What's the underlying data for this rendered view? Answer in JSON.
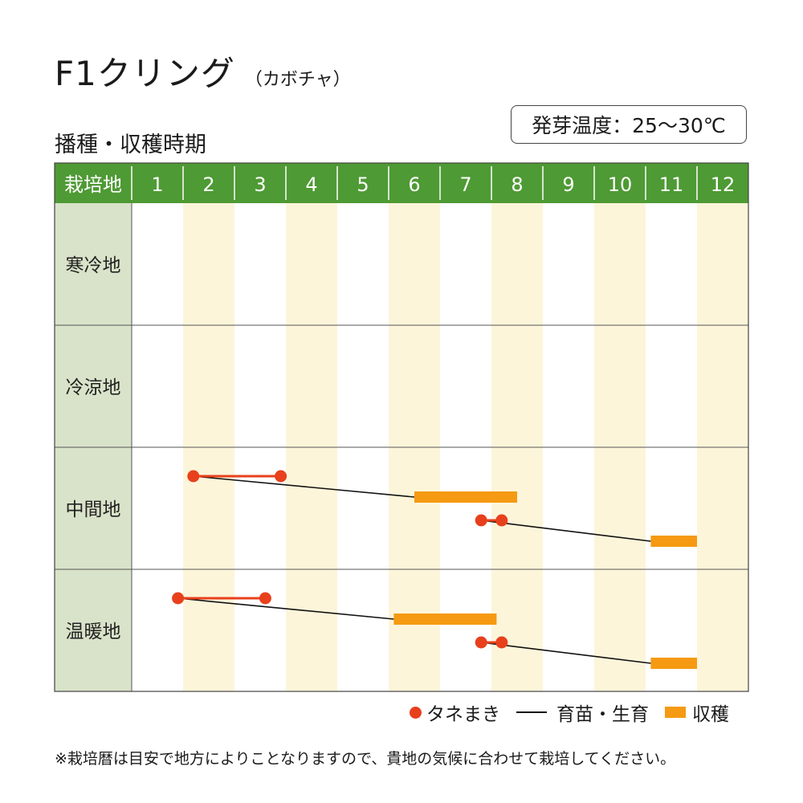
{
  "title": {
    "main": "F1クリング",
    "sub": "（カボチャ）"
  },
  "section_title": "播種・収穫時期",
  "germination_temp": "発芽温度：25～30℃",
  "legend": {
    "sowing": "タネまき",
    "growing": "育苗・生育",
    "harvest": "収穫"
  },
  "note": "※栽培暦は目安で地方によりことなりますので、貴地の気候に合わせて栽培してください。",
  "colors": {
    "header_green": "#4e9a34",
    "label_column": "#d9e3c9",
    "alt_month": "#fdf5da",
    "sowing": "#e8401c",
    "growing": "#111111",
    "harvest": "#f59a12"
  },
  "chart_data": {
    "type": "table",
    "header_label": "栽培地",
    "months": [
      "1",
      "2",
      "3",
      "4",
      "5",
      "6",
      "7",
      "8",
      "9",
      "10",
      "11",
      "12"
    ],
    "regions": [
      {
        "name": "寒冷地",
        "schedules": []
      },
      {
        "name": "冷涼地",
        "schedules": []
      },
      {
        "name": "中間地",
        "schedules": [
          {
            "sowing": [
              2.2,
              3.9
            ],
            "growing_end": 6.5,
            "harvest": [
              6.5,
              8.5
            ]
          },
          {
            "sowing": [
              7.8,
              8.2
            ],
            "growing_end": 11.1,
            "harvest": [
              11.1,
              12.0
            ]
          }
        ]
      },
      {
        "name": "温暖地",
        "schedules": [
          {
            "sowing": [
              1.9,
              3.6
            ],
            "growing_end": 6.1,
            "harvest": [
              6.1,
              8.1
            ]
          },
          {
            "sowing": [
              7.8,
              8.2
            ],
            "growing_end": 11.1,
            "harvest": [
              11.1,
              12.0
            ]
          }
        ]
      }
    ]
  }
}
